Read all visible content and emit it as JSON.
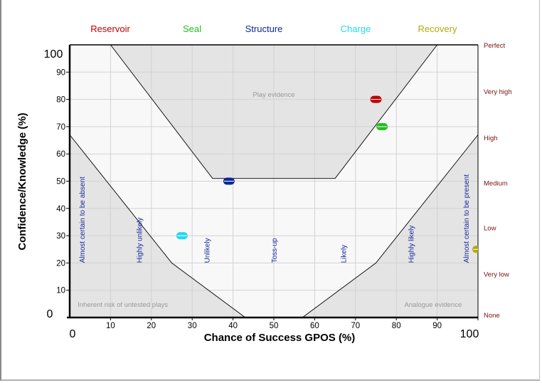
{
  "chart_data": {
    "type": "scatter",
    "title": "",
    "xlabel": "Chance of Success GPOS (%)",
    "ylabel": "Confidence/Knowledge (%)",
    "xlim": [
      0,
      100
    ],
    "ylim": [
      0,
      100
    ],
    "grid": true,
    "x_ticks": [
      "10",
      "20",
      "30",
      "40",
      "50",
      "60",
      "70",
      "80",
      "90"
    ],
    "y_ticks": [
      "10",
      "20",
      "30",
      "40",
      "50",
      "60",
      "70",
      "80",
      "90"
    ],
    "x_min_label": "0",
    "x_max_label": "100",
    "y_min_label": "0",
    "y_max_label": "100",
    "legend_position": "top",
    "series": [
      {
        "name": "Reservoir",
        "color": "#c00000",
        "x": 75,
        "y": 80
      },
      {
        "name": "Seal",
        "color": "#1fbf1f",
        "x": 76.5,
        "y": 70
      },
      {
        "name": "Structure",
        "color": "#0a2a9a",
        "x": 39,
        "y": 50
      },
      {
        "name": "Charge",
        "color": "#22d8ee",
        "x": 27.5,
        "y": 30
      },
      {
        "name": "Recovery",
        "color": "#b0aa10",
        "x": 100,
        "y": 25
      }
    ],
    "regions": [
      {
        "name": "Play evidence",
        "points": [
          [
            10,
            100
          ],
          [
            35,
            51
          ],
          [
            65,
            51
          ],
          [
            90,
            100
          ]
        ],
        "label_at": [
          50,
          82
        ]
      },
      {
        "name": "Inherent risk of untested plays",
        "points": [
          [
            0,
            67
          ],
          [
            25,
            20
          ],
          [
            43,
            0
          ],
          [
            0,
            0
          ]
        ],
        "label_at": [
          13,
          5
        ]
      },
      {
        "name": "Analogue evidence",
        "points": [
          [
            100,
            67
          ],
          [
            75,
            20
          ],
          [
            57,
            0
          ],
          [
            100,
            0
          ]
        ],
        "label_at": [
          89,
          5
        ]
      }
    ],
    "probability_labels": [
      {
        "text": "Almost certain to be absent",
        "x": 3
      },
      {
        "text": "Highly unlikely",
        "x": 17
      },
      {
        "text": "Unlikely",
        "x": 33.5
      },
      {
        "text": "Toss-up",
        "x": 50
      },
      {
        "text": "Likely",
        "x": 67
      },
      {
        "text": "Highly likely",
        "x": 83.5
      },
      {
        "text": "Almost certain to be present",
        "x": 97
      }
    ],
    "confidence_labels": [
      {
        "text": "Perfect",
        "y": 100
      },
      {
        "text": "Very high",
        "y": 83
      },
      {
        "text": "High",
        "y": 66
      },
      {
        "text": "Medium",
        "y": 49.5
      },
      {
        "text": "Low",
        "y": 33
      },
      {
        "text": "Very low",
        "y": 16
      },
      {
        "text": "None",
        "y": 1
      }
    ]
  }
}
